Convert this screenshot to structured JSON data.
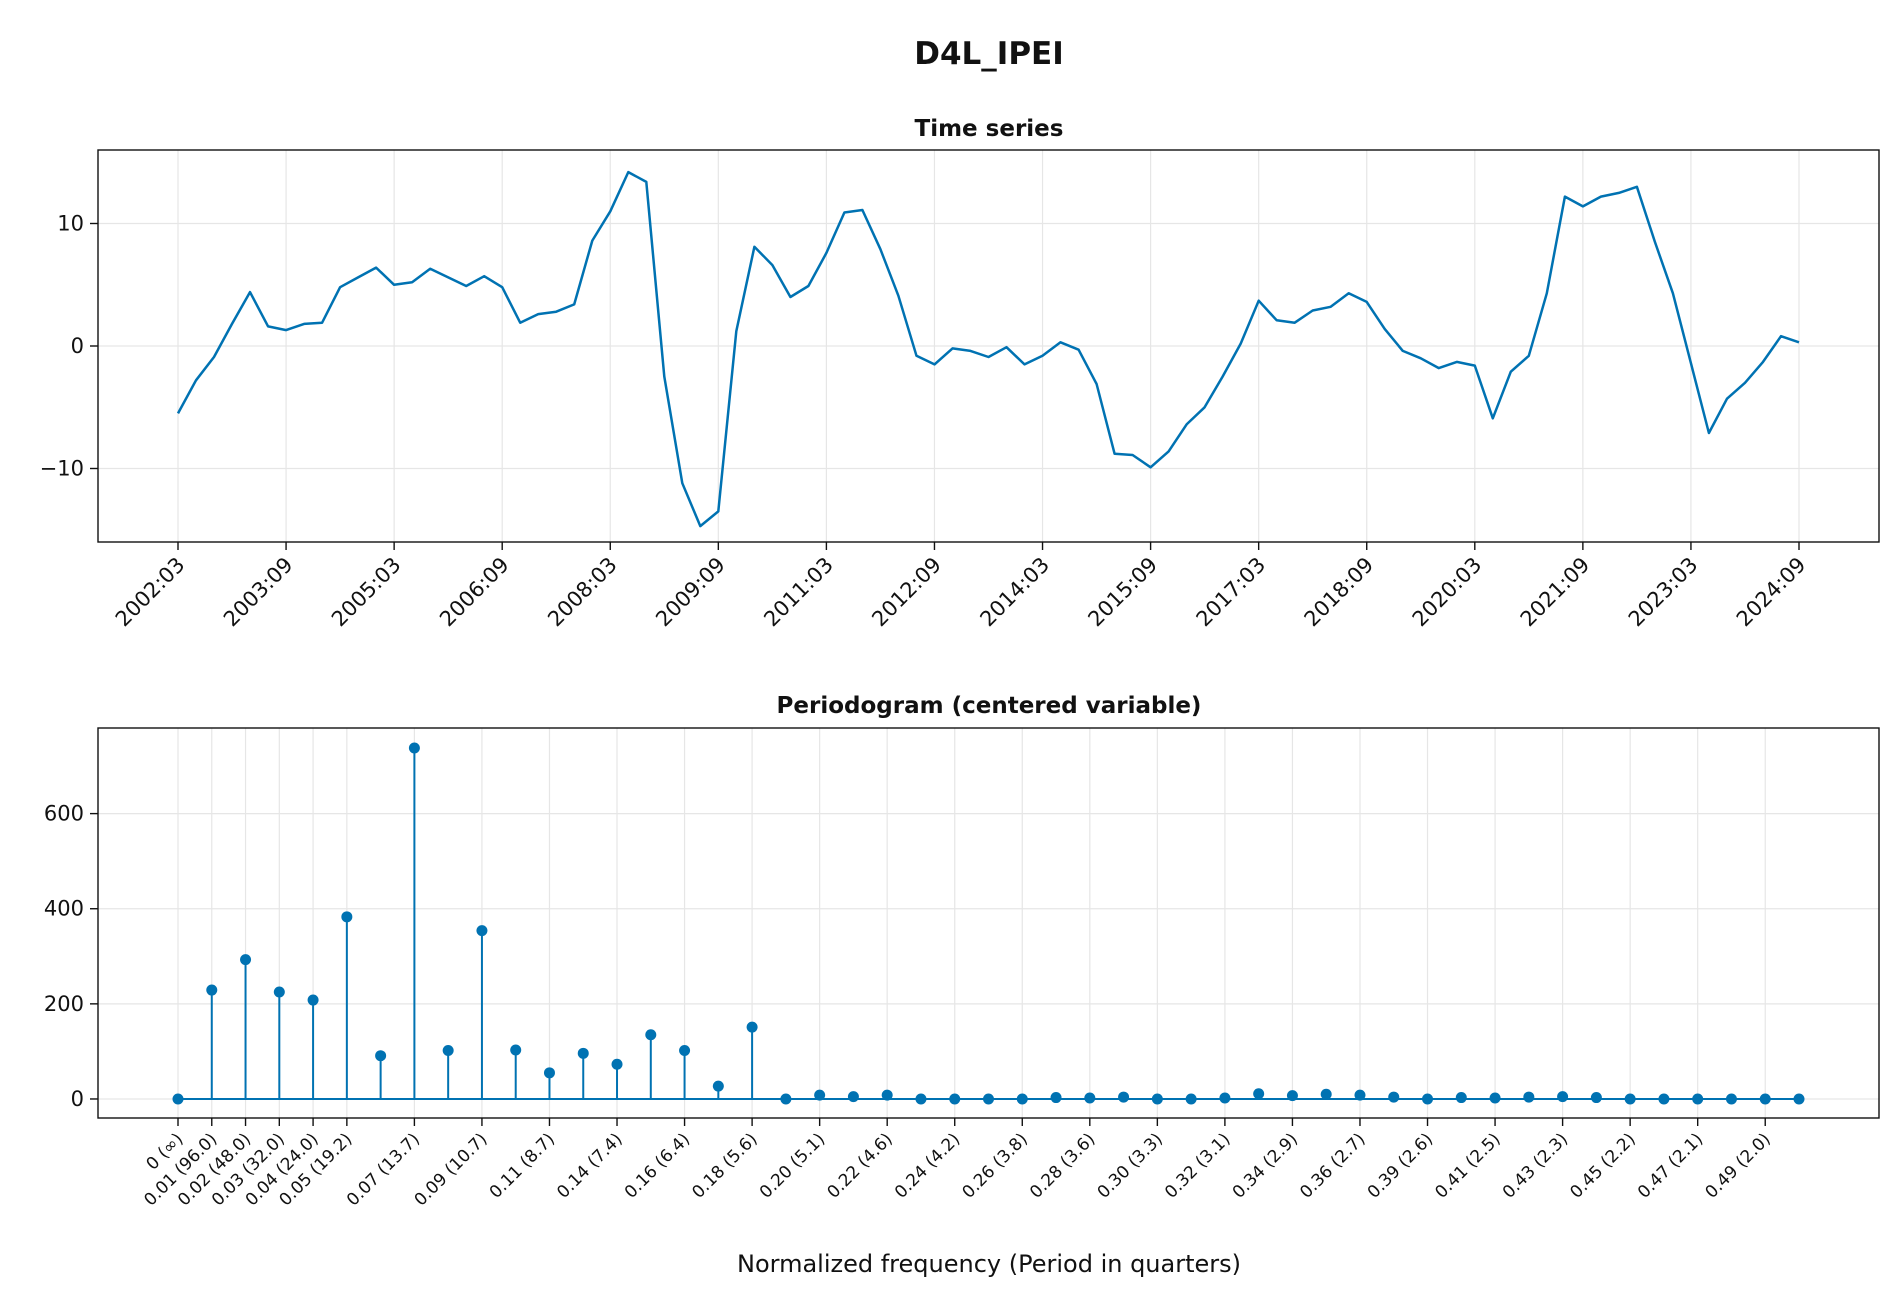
{
  "figure": {
    "title": "D4L_IPEI"
  },
  "chart_data": [
    {
      "type": "line",
      "title": "Time series",
      "xlabel": "",
      "ylabel": "",
      "ylim": [
        -16,
        16
      ],
      "yticks": [
        -10,
        0,
        10
      ],
      "ytick_labels": [
        "−10",
        "0",
        "10"
      ],
      "xticks": [
        "2002:03",
        "2003:09",
        "2005:03",
        "2006:09",
        "2008:03",
        "2009:09",
        "2011:03",
        "2012:09",
        "2014:03",
        "2015:09",
        "2017:03",
        "2018:09",
        "2020:03",
        "2021:09",
        "2023:03",
        "2024:09"
      ],
      "x_start": "2002:03",
      "x_frequency": "quarterly",
      "color": "#0072b2",
      "grid": true,
      "values": [
        -5.5,
        -2.8,
        -0.9,
        1.8,
        4.4,
        1.6,
        1.3,
        1.8,
        1.9,
        4.8,
        5.6,
        6.4,
        5.0,
        5.2,
        6.3,
        5.6,
        4.9,
        5.7,
        4.8,
        1.9,
        2.6,
        2.8,
        3.4,
        8.6,
        11.0,
        14.2,
        13.4,
        -2.5,
        -11.2,
        -14.7,
        -13.5,
        1.2,
        8.1,
        6.6,
        4.0,
        4.9,
        7.6,
        10.9,
        11.1,
        7.9,
        4.1,
        -0.8,
        -1.5,
        -0.2,
        -0.4,
        -0.9,
        -0.1,
        -1.5,
        -0.8,
        0.3,
        -0.3,
        -3.1,
        -8.8,
        -8.9,
        -9.9,
        -8.6,
        -6.4,
        -5.0,
        -2.5,
        0.2,
        3.7,
        2.1,
        1.9,
        2.9,
        3.2,
        4.3,
        3.6,
        1.4,
        -0.4,
        -1.0,
        -1.8,
        -1.3,
        -1.6,
        -5.9,
        -2.1,
        -0.8,
        4.3,
        12.2,
        11.4,
        12.2,
        12.5,
        13.0,
        8.5,
        4.3,
        -1.4,
        -7.1,
        -4.3,
        -3.0,
        -1.3,
        0.8,
        0.3
      ]
    },
    {
      "type": "stem",
      "title": "Periodogram (centered variable)",
      "xlabel": "Normalized frequency (Period in quarters)",
      "ylabel": "",
      "ylim": [
        -40,
        780
      ],
      "yticks": [
        0,
        200,
        400,
        600
      ],
      "color": "#0072b2",
      "grid": true,
      "xtick_labels": [
        "0 (∞)",
        "0.01 (96.0)",
        "0.02 (48.0)",
        "0.03 (32.0)",
        "0.04 (24.0)",
        "0.05 (19.2)",
        "0.07 (13.7)",
        "0.09 (10.7)",
        "0.11 (8.7)",
        "0.14 (7.4)",
        "0.16 (6.4)",
        "0.18 (5.6)",
        "0.20 (5.1)",
        "0.22 (4.6)",
        "0.24 (4.2)",
        "0.26 (3.8)",
        "0.28 (3.6)",
        "0.30 (3.3)",
        "0.32 (3.1)",
        "0.34 (2.9)",
        "0.36 (2.7)",
        "0.39 (2.6)",
        "0.41 (2.5)",
        "0.43 (2.3)",
        "0.45 (2.2)",
        "0.47 (2.1)",
        "0.49 (2.0)"
      ],
      "xtick_positions": [
        0,
        1,
        2,
        3,
        4,
        5,
        7,
        9,
        11,
        13,
        15,
        17,
        19,
        21,
        23,
        25,
        27,
        29,
        31,
        33,
        35,
        37,
        39,
        41,
        43,
        45,
        47
      ],
      "values": [
        0,
        229,
        293,
        225,
        208,
        383,
        91,
        738,
        102,
        354,
        103,
        55,
        96,
        73,
        135,
        102,
        27,
        151,
        0,
        8,
        5,
        8,
        0,
        0,
        0,
        0,
        3,
        2,
        4,
        0,
        0,
        2,
        11,
        7,
        10,
        8,
        4,
        0,
        3,
        2,
        4,
        5,
        3,
        0,
        0,
        0,
        0,
        0,
        0
      ]
    }
  ]
}
